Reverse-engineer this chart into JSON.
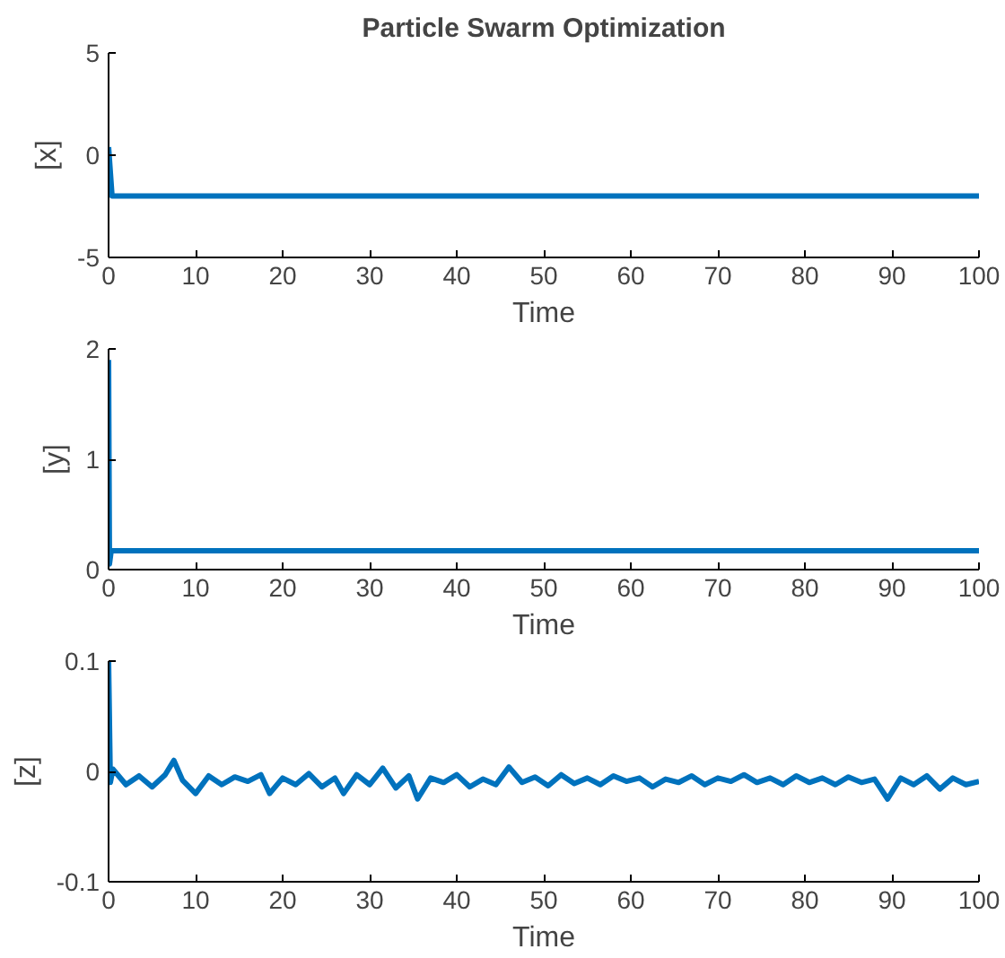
{
  "chart_data": [
    {
      "type": "line",
      "title": "Particle Swarm Optimization",
      "xlabel": "Time",
      "ylabel": "[x]",
      "xlim": [
        0,
        100
      ],
      "ylim": [
        -5,
        5
      ],
      "xticks": [
        0,
        10,
        20,
        30,
        40,
        50,
        60,
        70,
        80,
        90,
        100
      ],
      "yticks": [
        -5,
        0,
        5
      ],
      "grid": false,
      "series": [
        {
          "color": "#0072bd",
          "x": [
            0,
            0.4,
            1,
            5,
            10,
            20,
            30,
            40,
            50,
            60,
            70,
            80,
            90,
            100
          ],
          "values": [
            0.4,
            -2,
            -2,
            -2,
            -2,
            -2,
            -2,
            -2,
            -2,
            -2,
            -2,
            -2,
            -2,
            -2
          ]
        }
      ]
    },
    {
      "type": "line",
      "xlabel": "Time",
      "ylabel": "[y]",
      "xlim": [
        0,
        100
      ],
      "ylim": [
        0,
        2
      ],
      "xticks": [
        0,
        10,
        20,
        30,
        40,
        50,
        60,
        70,
        80,
        90,
        100
      ],
      "yticks": [
        0,
        1,
        2
      ],
      "grid": false,
      "series": [
        {
          "color": "#0072bd",
          "x": [
            0,
            0.1,
            0.3,
            1,
            5,
            10,
            20,
            30,
            40,
            50,
            60,
            70,
            80,
            90,
            100
          ],
          "values": [
            1.9,
            0.05,
            0.17,
            0.17,
            0.17,
            0.17,
            0.17,
            0.17,
            0.17,
            0.17,
            0.17,
            0.17,
            0.17,
            0.17,
            0.17
          ]
        }
      ]
    },
    {
      "type": "line",
      "xlabel": "Time",
      "ylabel": "[z]",
      "xlim": [
        0,
        100
      ],
      "ylim": [
        -0.1,
        0.1
      ],
      "xticks": [
        0,
        10,
        20,
        30,
        40,
        50,
        60,
        70,
        80,
        90,
        100
      ],
      "yticks": [
        -0.1,
        0,
        0.1
      ],
      "grid": false,
      "series": [
        {
          "color": "#0072bd",
          "x": [
            0,
            0.2,
            0.5,
            2,
            3.5,
            5,
            6.5,
            7.5,
            8.5,
            10,
            11.5,
            13,
            14.5,
            16,
            17.5,
            18.5,
            20,
            21.5,
            23,
            24.5,
            26,
            27,
            28.5,
            30,
            31.5,
            33,
            34.5,
            35.5,
            37,
            38.5,
            40,
            41.5,
            43,
            44.5,
            46,
            47.5,
            49,
            50.5,
            52,
            53.5,
            55,
            56.5,
            58,
            59.5,
            61,
            62.5,
            64,
            65.5,
            67,
            68.5,
            70,
            71.5,
            73,
            74.5,
            76,
            77.5,
            79,
            80.5,
            82,
            83.5,
            85,
            86.5,
            88,
            89.5,
            91,
            92.5,
            94,
            95.5,
            97,
            98.5,
            100
          ],
          "values": [
            0.1,
            -0.01,
            0.002,
            -0.012,
            -0.004,
            -0.014,
            -0.003,
            0.01,
            -0.008,
            -0.02,
            -0.004,
            -0.012,
            -0.005,
            -0.009,
            -0.003,
            -0.02,
            -0.006,
            -0.012,
            -0.002,
            -0.014,
            -0.006,
            -0.02,
            -0.003,
            -0.012,
            0.003,
            -0.015,
            -0.004,
            -0.025,
            -0.006,
            -0.01,
            -0.003,
            -0.014,
            -0.007,
            -0.012,
            0.004,
            -0.01,
            -0.005,
            -0.013,
            -0.003,
            -0.011,
            -0.006,
            -0.012,
            -0.004,
            -0.009,
            -0.006,
            -0.014,
            -0.007,
            -0.01,
            -0.004,
            -0.012,
            -0.006,
            -0.009,
            -0.003,
            -0.01,
            -0.006,
            -0.012,
            -0.004,
            -0.01,
            -0.006,
            -0.012,
            -0.005,
            -0.01,
            -0.007,
            -0.025,
            -0.006,
            -0.012,
            -0.004,
            -0.016,
            -0.006,
            -0.012,
            -0.009
          ]
        }
      ]
    }
  ]
}
